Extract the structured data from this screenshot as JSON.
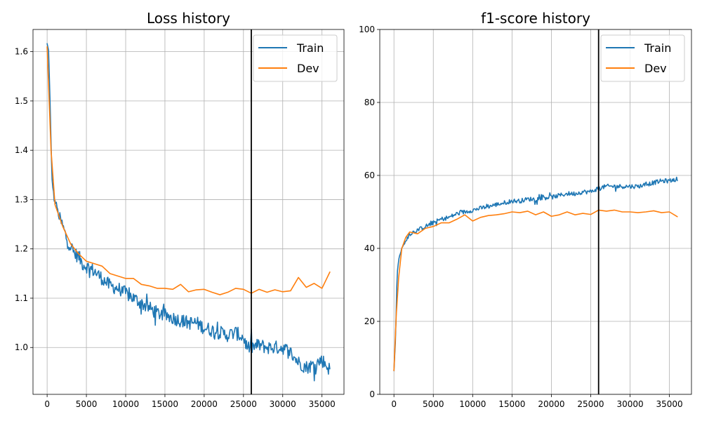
{
  "chart_data": [
    {
      "type": "line",
      "title": "Loss history",
      "xlabel": "",
      "ylabel": "",
      "xlim": [
        -1800,
        37800
      ],
      "ylim": [
        0.905,
        1.645
      ],
      "xticks": [
        0,
        5000,
        10000,
        15000,
        20000,
        25000,
        30000,
        35000
      ],
      "yticks": [
        1.0,
        1.1,
        1.2,
        1.3,
        1.4,
        1.5,
        1.6
      ],
      "ytick_decimals": 1,
      "grid": true,
      "legend": "top-right",
      "vline_x": 26000,
      "series": [
        {
          "name": "Train",
          "color": "#1f77b4",
          "noisy": true,
          "noise": 0.014,
          "x": [
            0,
            200,
            400,
            600,
            900,
            1200,
            1500,
            2000,
            2500,
            3000,
            3500,
            4000,
            4500,
            5000,
            6000,
            7000,
            8000,
            9000,
            10000,
            11000,
            12000,
            13000,
            14000,
            15000,
            16000,
            17000,
            18000,
            19000,
            20000,
            21000,
            22000,
            23000,
            24000,
            25000,
            25500,
            26000,
            27000,
            28000,
            29000,
            30000,
            31000,
            32000,
            33000,
            34000,
            35000,
            36000
          ],
          "y": [
            1.615,
            1.6,
            1.48,
            1.345,
            1.3,
            1.29,
            1.265,
            1.245,
            1.22,
            1.205,
            1.19,
            1.185,
            1.17,
            1.165,
            1.155,
            1.14,
            1.125,
            1.12,
            1.11,
            1.1,
            1.09,
            1.08,
            1.07,
            1.065,
            1.06,
            1.055,
            1.05,
            1.05,
            1.04,
            1.035,
            1.03,
            1.025,
            1.03,
            1.02,
            1.0,
            1.0,
            1.005,
            1.0,
            1.0,
            1.0,
            0.99,
            0.97,
            0.96,
            0.965,
            0.975,
            0.955
          ]
        },
        {
          "name": "Dev",
          "color": "#ff7f0e",
          "noisy": false,
          "x": [
            0,
            500,
            1000,
            2000,
            3000,
            4000,
            5000,
            6000,
            7000,
            8000,
            9000,
            10000,
            11000,
            12000,
            13000,
            14000,
            15000,
            16000,
            17000,
            18000,
            19000,
            20000,
            21000,
            22000,
            23000,
            24000,
            25000,
            26000,
            27000,
            28000,
            29000,
            30000,
            31000,
            32000,
            33000,
            34000,
            35000,
            36000
          ],
          "y": [
            1.61,
            1.4,
            1.29,
            1.245,
            1.21,
            1.19,
            1.175,
            1.17,
            1.165,
            1.15,
            1.145,
            1.14,
            1.14,
            1.128,
            1.125,
            1.12,
            1.12,
            1.118,
            1.128,
            1.113,
            1.117,
            1.118,
            1.112,
            1.107,
            1.112,
            1.12,
            1.118,
            1.11,
            1.118,
            1.112,
            1.117,
            1.113,
            1.115,
            1.142,
            1.122,
            1.13,
            1.12,
            1.153
          ]
        }
      ]
    },
    {
      "type": "line",
      "title": "f1-score history",
      "xlabel": "",
      "ylabel": "",
      "xlim": [
        -1800,
        37800
      ],
      "ylim": [
        0,
        100
      ],
      "xticks": [
        0,
        5000,
        10000,
        15000,
        20000,
        25000,
        30000,
        35000
      ],
      "yticks": [
        0,
        20,
        40,
        60,
        80,
        100
      ],
      "ytick_decimals": 0,
      "grid": true,
      "legend": "top-right",
      "vline_x": 26000,
      "series": [
        {
          "name": "Train",
          "color": "#1f77b4",
          "noisy": true,
          "noise": 0.6,
          "x": [
            0,
            200,
            400,
            600,
            1000,
            1500,
            2000,
            3000,
            4000,
            5000,
            6000,
            7000,
            8000,
            9000,
            10000,
            11000,
            12000,
            13000,
            14000,
            15000,
            16000,
            17000,
            18000,
            19000,
            20000,
            21000,
            22000,
            23000,
            24000,
            25000,
            26000,
            27000,
            28000,
            29000,
            30000,
            31000,
            32000,
            33000,
            34000,
            35000,
            36000
          ],
          "y": [
            6.5,
            15,
            33,
            37,
            40,
            42,
            44,
            45,
            46,
            47,
            48,
            48.5,
            49.5,
            50,
            50.5,
            51,
            51.5,
            52,
            52.5,
            53,
            53,
            53.5,
            53.5,
            54,
            54,
            54.5,
            55,
            55,
            55.5,
            55.5,
            56.5,
            57,
            57,
            57,
            57,
            57,
            57.5,
            58,
            58.5,
            58.5,
            59
          ]
        },
        {
          "name": "Dev",
          "color": "#ff7f0e",
          "noisy": false,
          "x": [
            0,
            300,
            600,
            1000,
            1500,
            2000,
            3000,
            4000,
            5000,
            6000,
            7000,
            8000,
            9000,
            10000,
            11000,
            12000,
            13000,
            14000,
            15000,
            16000,
            17000,
            18000,
            19000,
            20000,
            21000,
            22000,
            23000,
            24000,
            25000,
            26000,
            27000,
            28000,
            29000,
            30000,
            31000,
            32000,
            33000,
            34000,
            35000,
            36000
          ],
          "y": [
            6.5,
            22,
            32,
            40,
            43,
            44.5,
            44,
            45.5,
            46,
            47,
            47,
            48,
            49.2,
            47.5,
            48.5,
            49,
            49.2,
            49.5,
            50,
            49.8,
            50.2,
            49.2,
            50,
            48.8,
            49.2,
            50,
            49.2,
            49.6,
            49.3,
            50.5,
            50.2,
            50.5,
            50,
            50,
            49.8,
            50,
            50.3,
            49.8,
            50,
            48.7
          ]
        }
      ]
    }
  ]
}
